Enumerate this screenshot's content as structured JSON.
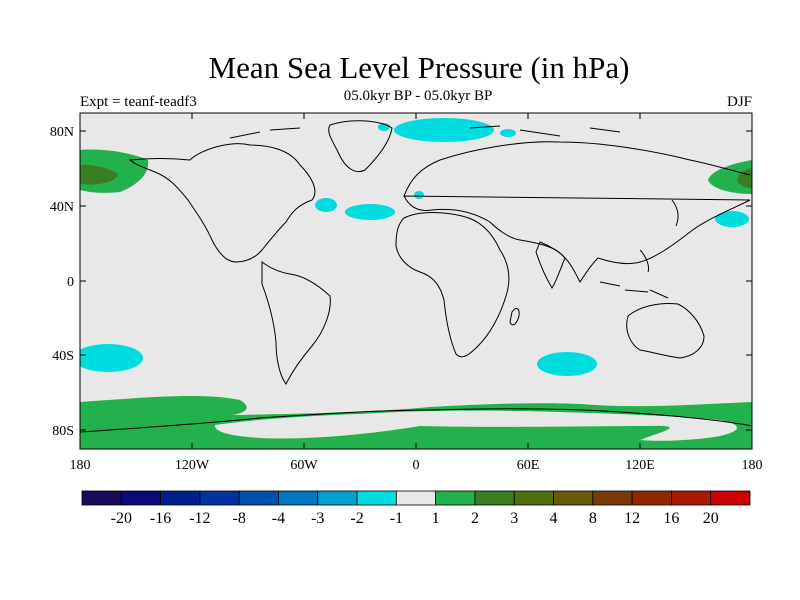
{
  "title": "Mean Sea Level Pressure (in hPa)",
  "subtitle": "05.0kyr BP - 05.0kyr BP",
  "left_string": "Expt = teanf-teadf3",
  "right_string": "DJF",
  "colors": {
    "background": "#e8e8e8",
    "coast": "#000000",
    "cyan": "#00dde0",
    "green": "#22b14c",
    "dark_green": "#3a7d22",
    "olive": "#5a5a1a"
  },
  "y_ticks": [
    "80N",
    "40N",
    "0",
    "40S",
    "80S"
  ],
  "x_ticks": [
    "180",
    "120W",
    "60W",
    "0",
    "60E",
    "120E",
    "180"
  ],
  "colorbar": {
    "colors": [
      "#1a0a5a",
      "#0a0a78",
      "#001f8f",
      "#0033a0",
      "#0050b0",
      "#0077c2",
      "#00a0d0",
      "#00dde0",
      "#e8e8e8",
      "#22b14c",
      "#3a7d22",
      "#4f6f12",
      "#6a5a10",
      "#7a3a08",
      "#8f2a00",
      "#a81a00",
      "#cc0000"
    ],
    "labels": [
      "-20",
      "-16",
      "-12",
      "-8",
      "-4",
      "-3",
      "-2",
      "-1",
      "1",
      "2",
      "3",
      "4",
      "8",
      "12",
      "16",
      "20"
    ]
  }
}
